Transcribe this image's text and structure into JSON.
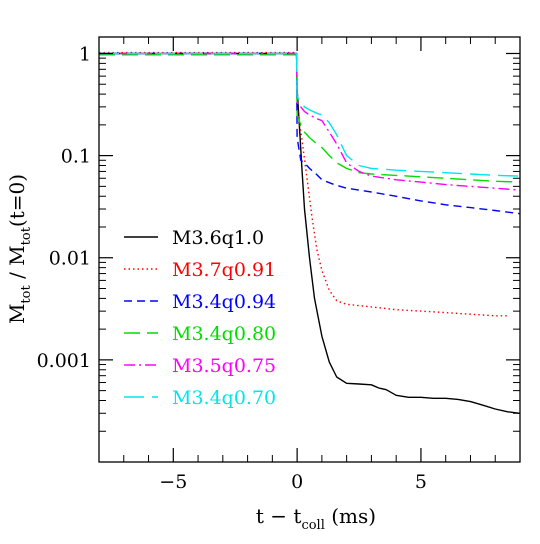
{
  "chart_data": {
    "type": "line",
    "title": "",
    "xlabel": {
      "main": "t  −  t",
      "subscript": "coll",
      "units": " (ms)"
    },
    "ylabel": {
      "part1": "M",
      "part1_sub": "tot",
      "part2": "  /  M",
      "part2_sub": "tot",
      "part3": "(t=0)"
    },
    "xlim": [
      -8,
      9
    ],
    "ylim": [
      0.0001,
      1.45
    ],
    "yscale": "log",
    "grid": false,
    "legend_position": "center-left",
    "xticks": [
      {
        "value": -5,
        "label": "−5"
      },
      {
        "value": 0,
        "label": "0"
      },
      {
        "value": 5,
        "label": "5"
      }
    ],
    "yticks": [
      {
        "value": 1,
        "label": "1"
      },
      {
        "value": 0.1,
        "label": "0.1"
      },
      {
        "value": 0.01,
        "label": "0.01"
      },
      {
        "value": 0.001,
        "label": "0.001"
      }
    ],
    "series": [
      {
        "name": "M3.6q1.0",
        "color": "#000000",
        "dash": "solid",
        "x": [
          -8,
          -0.02,
          0.0,
          0.1,
          0.2,
          0.3,
          0.5,
          0.7,
          1.0,
          1.3,
          1.6,
          2.0,
          2.5,
          3.0,
          3.3,
          3.6,
          4.0,
          4.5,
          5.0,
          5.5,
          6.0,
          6.5,
          7.0,
          7.5,
          8.0,
          8.5,
          9.0
        ],
        "y": [
          1.0,
          1.0,
          0.45,
          0.18,
          0.07,
          0.03,
          0.01,
          0.004,
          0.0017,
          0.00095,
          0.00068,
          0.00059,
          0.00058,
          0.00057,
          0.00053,
          0.00051,
          0.00045,
          0.00043,
          0.00043,
          0.00042,
          0.00042,
          0.00041,
          0.00039,
          0.00036,
          0.00033,
          0.00031,
          0.0003
        ]
      },
      {
        "name": "M3.7q0.91",
        "color": "#ff0000",
        "dash": "dotted",
        "x": [
          -8,
          -0.02,
          0.0,
          0.2,
          0.4,
          0.6,
          0.8,
          1.0,
          1.3,
          1.6,
          2.0,
          2.5,
          3.0,
          4.0,
          5.0,
          6.0,
          7.0,
          8.0,
          8.5
        ],
        "y": [
          1.02,
          1.02,
          0.3,
          0.14,
          0.06,
          0.025,
          0.012,
          0.0075,
          0.0048,
          0.0038,
          0.0035,
          0.0034,
          0.0033,
          0.0031,
          0.003,
          0.0029,
          0.0028,
          0.0027,
          0.0027
        ]
      },
      {
        "name": "M3.4q0.94",
        "color": "#0000ff",
        "dash": "dashed",
        "x": [
          -8,
          -0.02,
          0.0,
          0.15,
          0.3,
          0.5,
          0.8,
          1.0,
          1.5,
          2.0,
          3.0,
          4.0,
          5.0,
          6.0,
          7.0,
          8.0,
          9.0
        ],
        "y": [
          1.0,
          1.0,
          0.15,
          0.09,
          0.085,
          0.075,
          0.065,
          0.058,
          0.052,
          0.048,
          0.044,
          0.04,
          0.036,
          0.033,
          0.031,
          0.029,
          0.027
        ]
      },
      {
        "name": "M3.4q0.80",
        "color": "#00dd00",
        "dash": "longdash",
        "x": [
          -8,
          -0.02,
          0.0,
          0.15,
          0.3,
          0.5,
          0.8,
          1.0,
          1.3,
          1.6,
          2.0,
          2.5,
          3.0,
          4.0,
          5.0,
          6.0,
          7.0,
          8.0,
          9.0
        ],
        "y": [
          0.97,
          0.97,
          0.25,
          0.2,
          0.17,
          0.15,
          0.13,
          0.12,
          0.1,
          0.085,
          0.075,
          0.068,
          0.066,
          0.064,
          0.062,
          0.06,
          0.058,
          0.056,
          0.055
        ]
      },
      {
        "name": "M3.5q0.75",
        "color": "#ff00ff",
        "dash": "dashdot",
        "x": [
          -8,
          -0.02,
          0.0,
          0.15,
          0.3,
          0.5,
          0.8,
          1.0,
          1.3,
          1.6,
          2.0,
          2.5,
          3.0,
          4.0,
          5.0,
          6.0,
          7.0,
          8.0,
          9.0
        ],
        "y": [
          1.0,
          1.0,
          0.33,
          0.3,
          0.27,
          0.25,
          0.23,
          0.22,
          0.17,
          0.13,
          0.085,
          0.07,
          0.063,
          0.058,
          0.055,
          0.052,
          0.05,
          0.048,
          0.046
        ]
      },
      {
        "name": "M3.4q0.70",
        "color": "#00e5ee",
        "dash": "longdash2",
        "x": [
          -8,
          -0.02,
          0.0,
          0.15,
          0.3,
          0.5,
          0.8,
          1.0,
          1.3,
          1.6,
          2.0,
          2.5,
          3.0,
          4.0,
          5.0,
          6.0,
          7.0,
          8.0,
          9.0
        ],
        "y": [
          1.0,
          1.0,
          0.38,
          0.33,
          0.3,
          0.28,
          0.26,
          0.25,
          0.21,
          0.16,
          0.1,
          0.08,
          0.075,
          0.072,
          0.07,
          0.068,
          0.066,
          0.064,
          0.063
        ]
      }
    ]
  }
}
